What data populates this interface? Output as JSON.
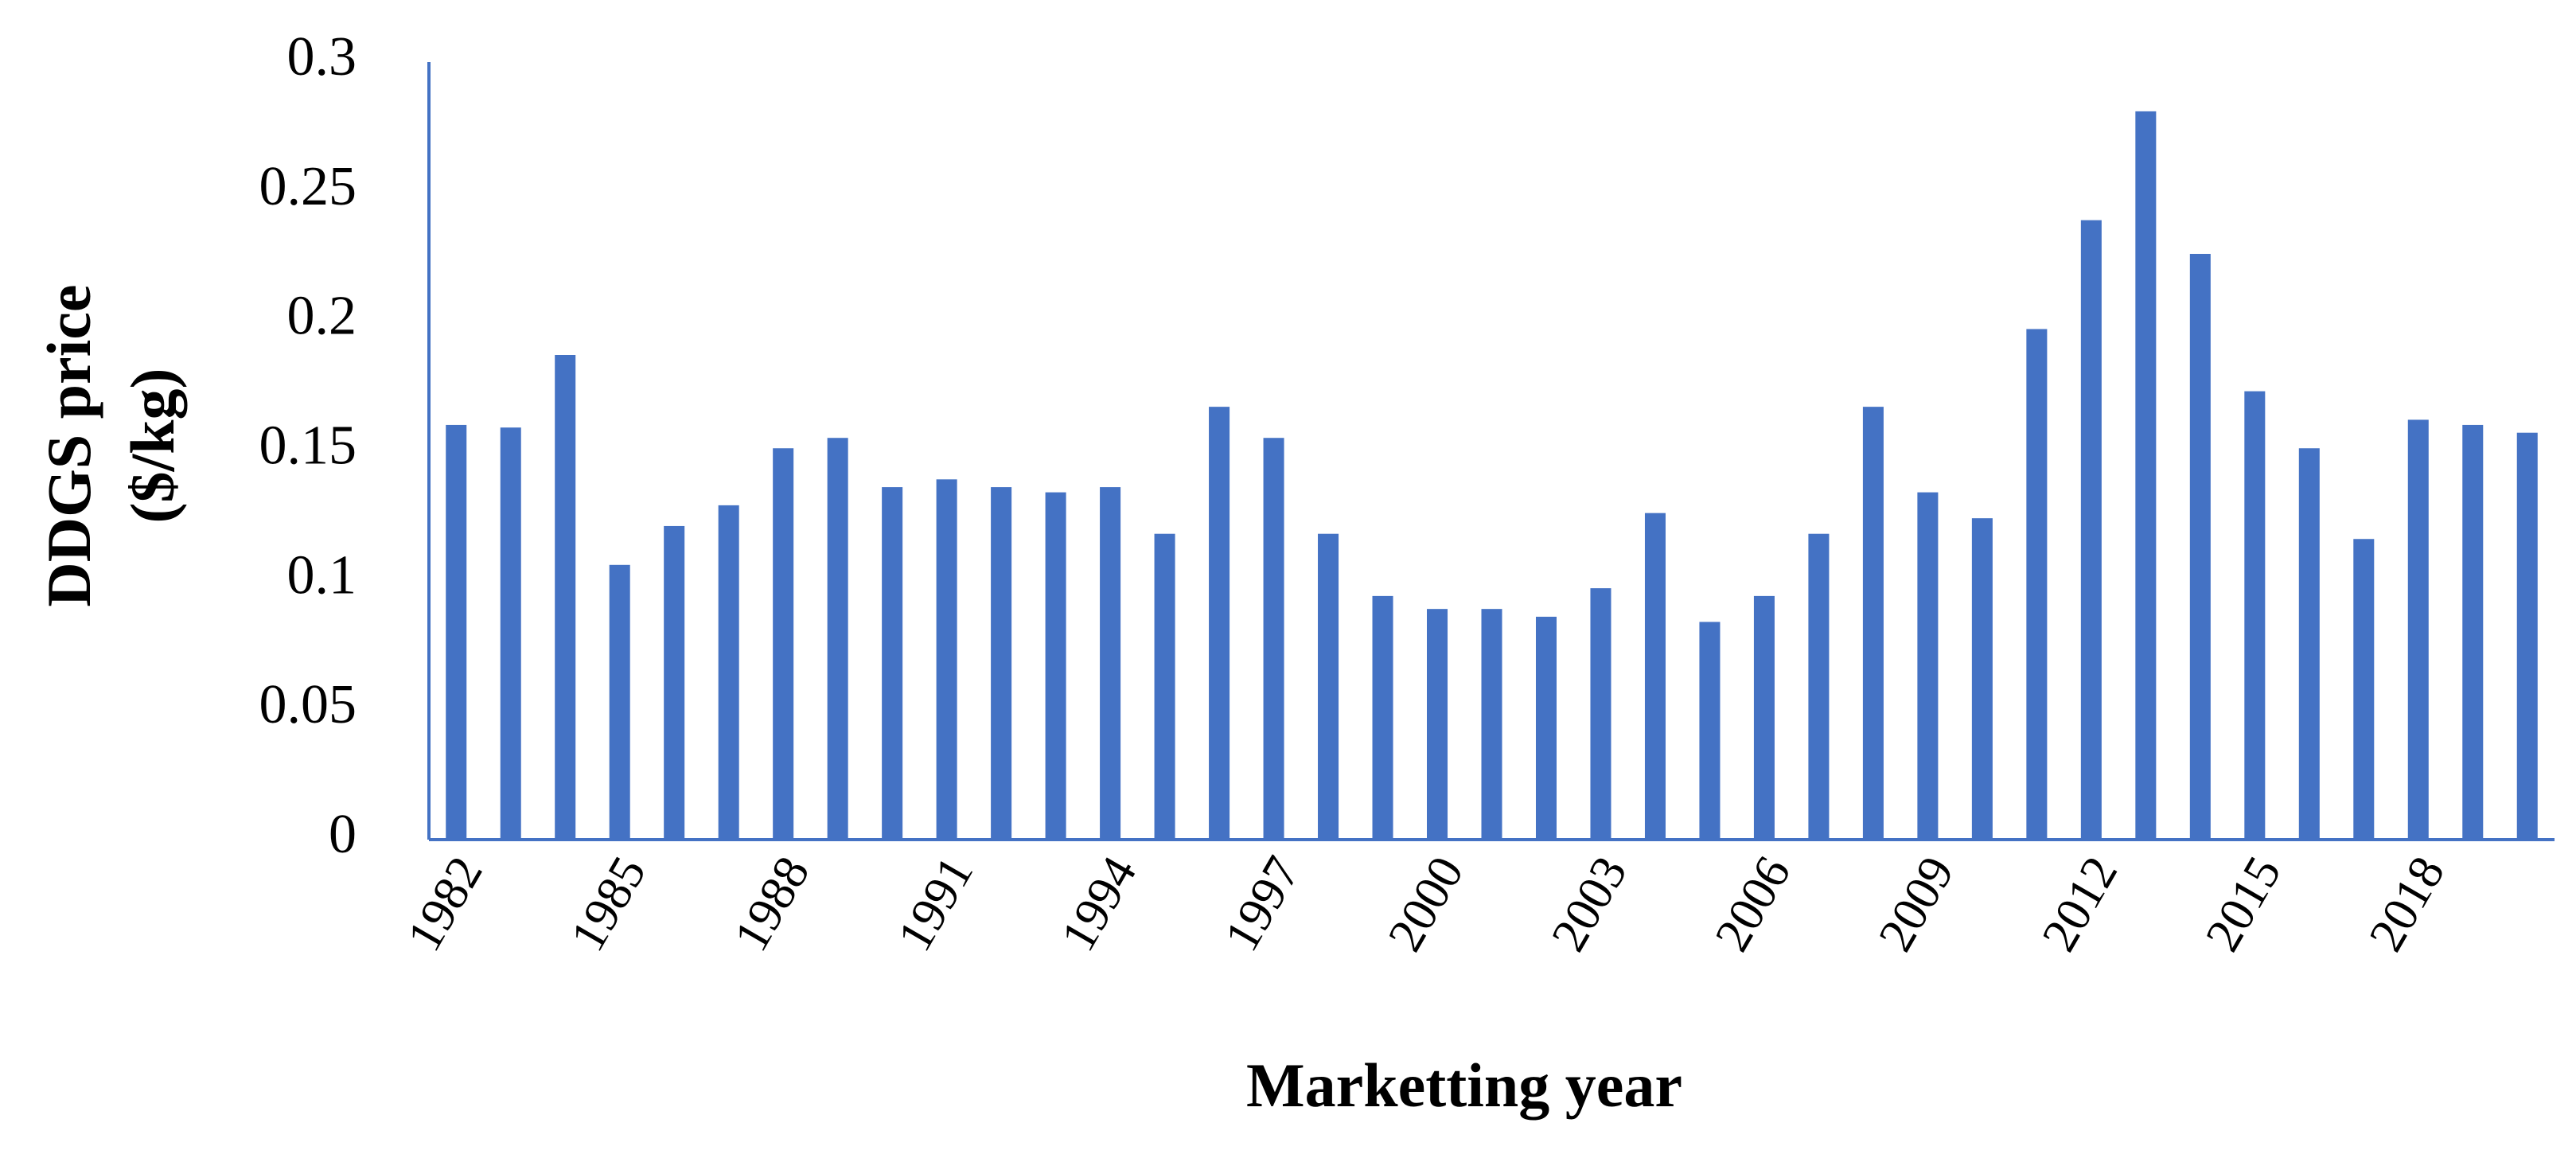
{
  "chart_data": {
    "type": "bar",
    "x_label": "Marketting year",
    "y_label": [
      "DDGS price",
      "($/kg)"
    ],
    "categories": [
      "1982",
      null,
      null,
      "1985",
      null,
      null,
      "1988",
      null,
      null,
      "1991",
      null,
      null,
      "1994",
      null,
      null,
      "1997",
      null,
      null,
      "2000",
      null,
      null,
      "2003",
      null,
      null,
      "2006",
      null,
      null,
      "2009",
      null,
      null,
      "2012",
      null,
      null,
      "2015",
      null,
      null,
      "2018",
      null,
      null
    ],
    "values": [
      0.16,
      0.159,
      0.187,
      0.106,
      0.121,
      0.129,
      0.151,
      0.155,
      0.136,
      0.139,
      0.136,
      0.134,
      0.136,
      0.118,
      0.167,
      0.155,
      0.118,
      0.094,
      0.089,
      0.089,
      0.086,
      0.097,
      0.126,
      0.084,
      0.094,
      0.118,
      0.167,
      0.134,
      0.124,
      0.197,
      0.239,
      0.281,
      0.226,
      0.173,
      0.151,
      0.116,
      0.162,
      0.16,
      0.157
    ],
    "color": "#4472c4",
    "ylim": [
      0,
      0.3
    ],
    "yticks": [
      0,
      0.05,
      0.1,
      0.15,
      0.2,
      0.25,
      0.3
    ],
    "grid": false
  }
}
